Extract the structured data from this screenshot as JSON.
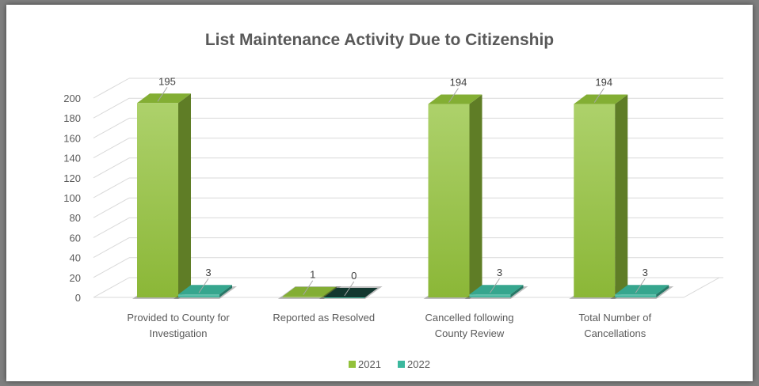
{
  "chart_data": {
    "type": "bar",
    "title": "List Maintenance Activity Due to Citizenship",
    "categories": [
      [
        "Provided to County for",
        "Investigation"
      ],
      [
        "Reported as Resolved"
      ],
      [
        "Cancelled following",
        "County Review"
      ],
      [
        "Total Number of",
        "Cancellations"
      ]
    ],
    "series": [
      {
        "name": "2021",
        "values": [
          195,
          1,
          194,
          194
        ],
        "color": "#92c13a"
      },
      {
        "name": "2022",
        "values": [
          3,
          0,
          3,
          3
        ],
        "color": "#3cb89e"
      }
    ],
    "ylim": [
      0,
      200
    ],
    "yticks": [
      0,
      20,
      40,
      60,
      80,
      100,
      120,
      140,
      160,
      180,
      200
    ],
    "grid": true,
    "legend": "bottom",
    "style": "3d-clustered-column"
  }
}
